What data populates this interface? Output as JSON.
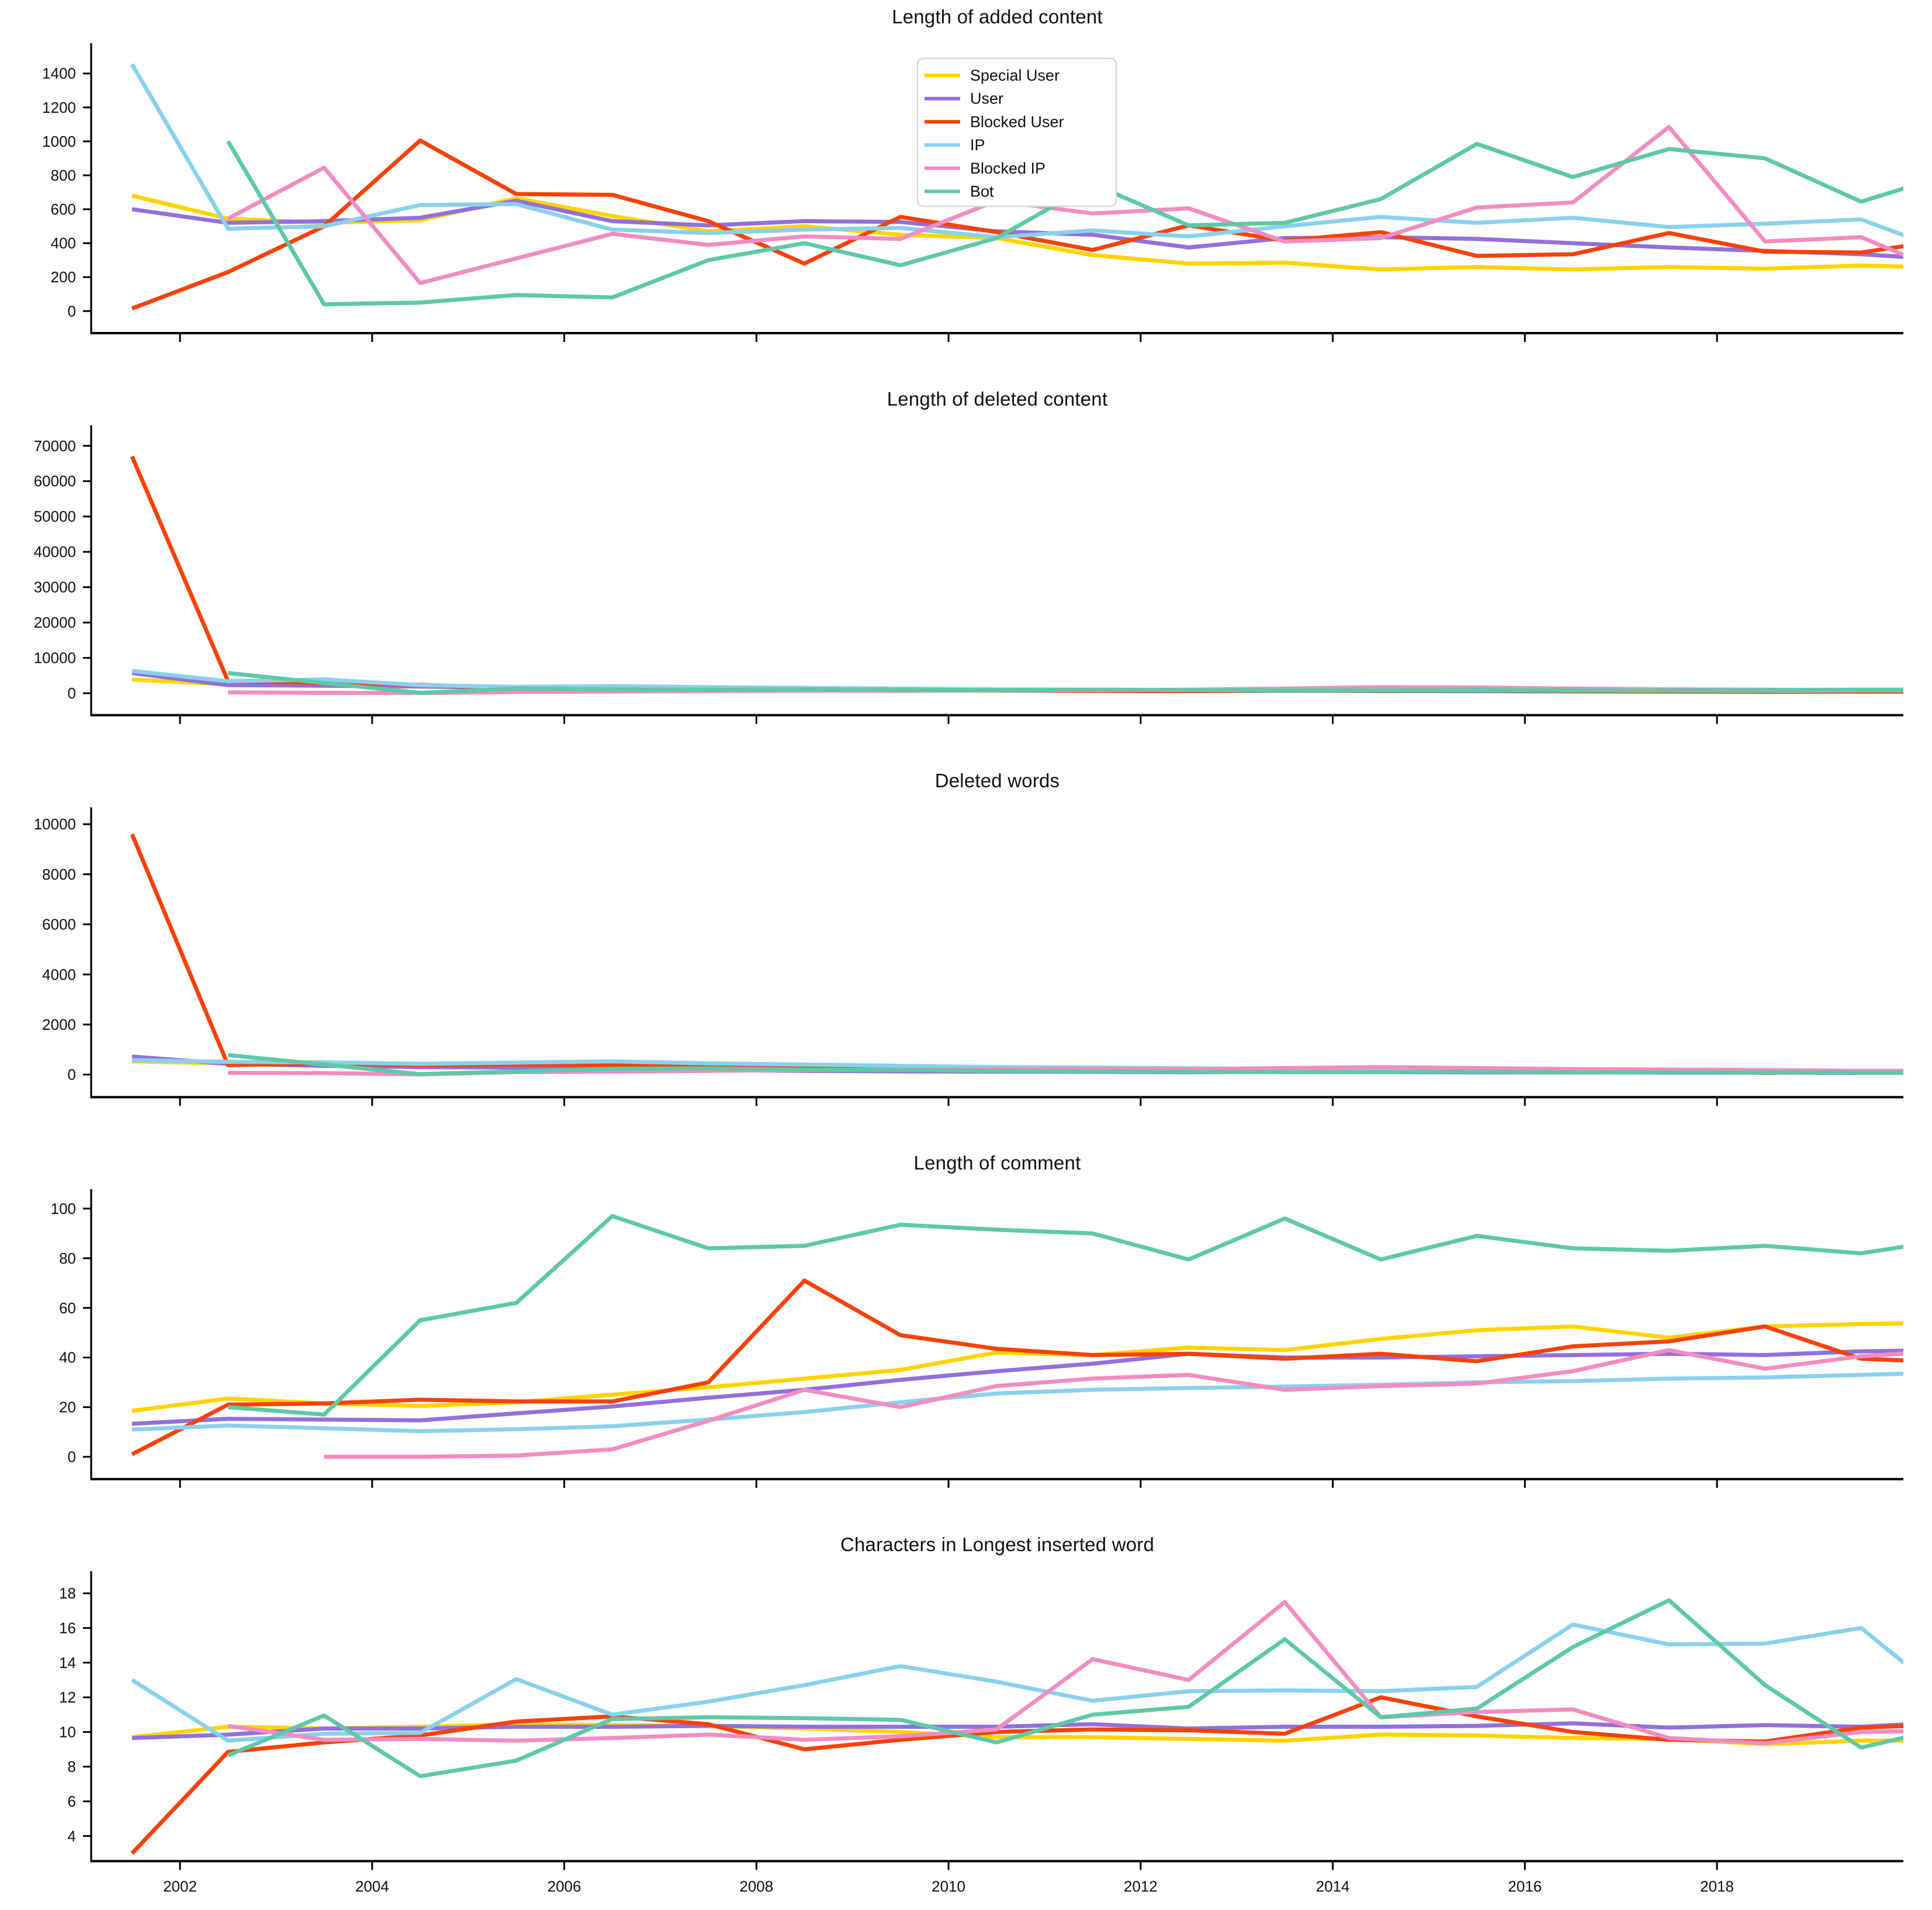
{
  "figure": {
    "background": "#ffffff",
    "text_color": "#111111",
    "axis_color": "#000000"
  },
  "colors": {
    "special_user": "#FFD400",
    "user": "#9370DB",
    "blocked_user": "#F64208",
    "ip": "#8AD1ED",
    "blocked_ip": "#F18DC1",
    "bot": "#5EC9A7"
  },
  "legend": {
    "position": "upper-center-chart-1",
    "entries": [
      {
        "label": "Special User",
        "color_key": "special_user"
      },
      {
        "label": "User",
        "color_key": "user"
      },
      {
        "label": "Blocked User",
        "color_key": "blocked_user"
      },
      {
        "label": "IP",
        "color_key": "ip"
      },
      {
        "label": "Blocked IP",
        "color_key": "blocked_ip"
      },
      {
        "label": "Bot",
        "color_key": "bot"
      }
    ]
  },
  "x": [
    2001.5,
    2002.5,
    2003.5,
    2004.5,
    2005.5,
    2006.5,
    2007.5,
    2008.5,
    2009.5,
    2010.5,
    2011.5,
    2012.5,
    2013.5,
    2014.5,
    2015.5,
    2016.5,
    2017.5,
    2018.5,
    2019.5,
    2020.5
  ],
  "xticks": [
    2002,
    2004,
    2006,
    2008,
    2010,
    2012,
    2014,
    2016,
    2018
  ],
  "xtick_labels": [
    "2002",
    "2004",
    "2006",
    "2008",
    "2010",
    "2012",
    "2014",
    "2016",
    "2018"
  ],
  "xlim": [
    2001.075,
    2019.94
  ],
  "chart_data": [
    {
      "type": "line",
      "id": "added-content",
      "title": "Length of added content",
      "ylabel": "",
      "yticks": [
        0,
        200,
        400,
        600,
        800,
        1000,
        1200,
        1400
      ],
      "ylim": [
        -130,
        1530
      ],
      "grid": false,
      "legend": true,
      "show_xtick_labels": false,
      "series": [
        {
          "name": "Special User",
          "color_key": "special_user",
          "values": [
            680,
            545,
            520,
            535,
            665,
            560,
            470,
            500,
            450,
            430,
            330,
            280,
            285,
            245,
            260,
            245,
            260,
            250,
            268,
            255
          ]
        },
        {
          "name": "User",
          "color_key": "user",
          "values": [
            600,
            520,
            530,
            550,
            650,
            530,
            505,
            530,
            525,
            470,
            450,
            375,
            430,
            435,
            425,
            400,
            375,
            355,
            335,
            300
          ]
        },
        {
          "name": "Blocked User",
          "color_key": "blocked_user",
          "values": [
            15,
            230,
            500,
            1005,
            690,
            685,
            530,
            280,
            555,
            465,
            360,
            505,
            415,
            465,
            325,
            335,
            460,
            350,
            345,
            430
          ]
        },
        {
          "name": "IP",
          "color_key": "ip",
          "values": [
            1455,
            485,
            500,
            625,
            630,
            480,
            460,
            480,
            490,
            435,
            475,
            440,
            500,
            555,
            520,
            550,
            495,
            515,
            540,
            330
          ]
        },
        {
          "name": "Blocked IP",
          "color_key": "blocked_ip",
          "values": [
            null,
            545,
            845,
            165,
            310,
            455,
            390,
            440,
            425,
            650,
            575,
            605,
            410,
            430,
            610,
            640,
            1085,
            410,
            435,
            200
          ]
        },
        {
          "name": "Bot",
          "color_key": "bot",
          "values": [
            null,
            1000,
            40,
            50,
            95,
            80,
            300,
            400,
            270,
            430,
            750,
            505,
            520,
            660,
            985,
            790,
            955,
            900,
            645,
            820
          ]
        }
      ]
    },
    {
      "type": "line",
      "id": "deleted-content",
      "title": "Length of deleted content",
      "ylabel": "",
      "yticks": [
        0,
        10000,
        20000,
        30000,
        40000,
        50000,
        60000,
        70000
      ],
      "ylim": [
        -6200,
        73500
      ],
      "grid": false,
      "legend": false,
      "show_xtick_labels": false,
      "series": [
        {
          "name": "Special User",
          "color_key": "special_user",
          "values": [
            3900,
            2500,
            2100,
            1900,
            1500,
            1300,
            1000,
            900,
            800,
            700,
            650,
            600,
            700,
            600,
            550,
            500,
            450,
            450,
            400,
            400
          ]
        },
        {
          "name": "User",
          "color_key": "user",
          "values": [
            5700,
            2300,
            2150,
            1900,
            1550,
            1300,
            1100,
            1000,
            900,
            800,
            700,
            650,
            700,
            650,
            600,
            550,
            500,
            500,
            450,
            450
          ]
        },
        {
          "name": "Blocked User",
          "color_key": "blocked_user",
          "values": [
            67000,
            3400,
            2900,
            2400,
            1450,
            1200,
            900,
            800,
            700,
            900,
            700,
            600,
            800,
            700,
            900,
            600,
            500,
            400,
            500,
            600
          ]
        },
        {
          "name": "IP",
          "color_key": "ip",
          "values": [
            6300,
            3400,
            3900,
            2300,
            1800,
            2000,
            1700,
            1500,
            1300,
            1100,
            1000,
            900,
            1000,
            900,
            900,
            800,
            750,
            700,
            800,
            800
          ]
        },
        {
          "name": "Blocked IP",
          "color_key": "blocked_ip",
          "values": [
            null,
            250,
            100,
            50,
            350,
            500,
            600,
            700,
            700,
            800,
            900,
            1000,
            1300,
            1700,
            1600,
            1300,
            1100,
            1000,
            900,
            900
          ]
        },
        {
          "name": "Bot",
          "color_key": "bot",
          "values": [
            null,
            5700,
            2900,
            100,
            1300,
            1100,
            1000,
            1100,
            1000,
            900,
            1000,
            900,
            800,
            800,
            900,
            800,
            800,
            900,
            1000,
            1000
          ]
        }
      ]
    },
    {
      "type": "line",
      "id": "deleted-words",
      "title": "Deleted words",
      "ylabel": "",
      "yticks": [
        0,
        2000,
        4000,
        6000,
        8000,
        10000
      ],
      "ylim": [
        -900,
        10350
      ],
      "grid": false,
      "legend": false,
      "show_xtick_labels": false,
      "series": [
        {
          "name": "Special User",
          "color_key": "special_user",
          "values": [
            530,
            450,
            380,
            300,
            330,
            250,
            200,
            160,
            130,
            120,
            110,
            100,
            120,
            110,
            100,
            90,
            90,
            80,
            80,
            80
          ]
        },
        {
          "name": "User",
          "color_key": "user",
          "values": [
            720,
            430,
            350,
            300,
            280,
            230,
            180,
            150,
            130,
            120,
            110,
            100,
            110,
            100,
            90,
            90,
            80,
            80,
            70,
            70
          ]
        },
        {
          "name": "Blocked User",
          "color_key": "blocked_user",
          "values": [
            9600,
            380,
            440,
            380,
            400,
            380,
            300,
            250,
            200,
            250,
            180,
            150,
            200,
            150,
            120,
            100,
            120,
            80,
            100,
            120
          ]
        },
        {
          "name": "IP",
          "color_key": "ip",
          "values": [
            580,
            510,
            490,
            430,
            480,
            530,
            450,
            400,
            350,
            300,
            280,
            250,
            230,
            220,
            250,
            200,
            180,
            150,
            150,
            150
          ]
        },
        {
          "name": "Blocked IP",
          "color_key": "blocked_ip",
          "values": [
            null,
            70,
            60,
            10,
            100,
            120,
            150,
            180,
            200,
            220,
            230,
            220,
            260,
            300,
            260,
            220,
            200,
            180,
            150,
            150
          ]
        },
        {
          "name": "Bot",
          "color_key": "bot",
          "values": [
            null,
            780,
            400,
            20,
            130,
            230,
            250,
            200,
            180,
            150,
            130,
            120,
            100,
            100,
            120,
            100,
            90,
            90,
            80,
            80
          ]
        }
      ]
    },
    {
      "type": "line",
      "id": "comment-length",
      "title": "Length of comment",
      "ylabel": "",
      "yticks": [
        0,
        20,
        40,
        60,
        80,
        100
      ],
      "ylim": [
        -9,
        104.5
      ],
      "grid": false,
      "legend": false,
      "show_xtick_labels": false,
      "series": [
        {
          "name": "Special User",
          "color_key": "special_user",
          "values": [
            18.5,
            23.5,
            21.5,
            20.5,
            22,
            25,
            28,
            31.5,
            35,
            42,
            41,
            44,
            43,
            47.5,
            51,
            52.5,
            48,
            52.5,
            53.5,
            54
          ]
        },
        {
          "name": "User",
          "color_key": "user",
          "values": [
            13.3,
            15.3,
            15,
            14.7,
            17.5,
            20.3,
            23.8,
            27,
            31,
            34.5,
            37.5,
            41.5,
            40,
            40,
            40.5,
            41,
            41.5,
            41,
            42.5,
            43
          ]
        },
        {
          "name": "Blocked User",
          "color_key": "blocked_user",
          "values": [
            1,
            21,
            21.5,
            23,
            22.3,
            22.3,
            30,
            71,
            49,
            43.5,
            41,
            41.5,
            39.5,
            41.5,
            38.5,
            44.5,
            46.5,
            52.5,
            39.5,
            38
          ]
        },
        {
          "name": "IP",
          "color_key": "ip",
          "values": [
            11,
            12.6,
            11.5,
            10.3,
            11.1,
            12.3,
            15,
            18,
            22,
            25.5,
            27,
            27.7,
            28.3,
            29,
            30,
            30.5,
            31.5,
            32,
            33,
            34
          ]
        },
        {
          "name": "Blocked IP",
          "color_key": "blocked_ip",
          "values": [
            null,
            null,
            0,
            0,
            0.5,
            3,
            14.5,
            27,
            20,
            28.5,
            31.5,
            33,
            27,
            28.5,
            29.5,
            34.5,
            43,
            35.5,
            40.5,
            43
          ]
        },
        {
          "name": "Bot",
          "color_key": "bot",
          "values": [
            null,
            20,
            17,
            55,
            62,
            97,
            84,
            85,
            93.5,
            91.5,
            90,
            79.5,
            96,
            79.5,
            89,
            84,
            83,
            85,
            82,
            88
          ]
        }
      ]
    },
    {
      "type": "line",
      "id": "longest-word",
      "title": "Characters in Longest inserted word",
      "ylabel": "",
      "yticks": [
        4,
        6,
        8,
        10,
        12,
        14,
        16,
        18
      ],
      "ylim": [
        2.55,
        18.8
      ],
      "grid": false,
      "legend": false,
      "show_xtick_labels": true,
      "series": [
        {
          "name": "Special User",
          "color_key": "special_user",
          "values": [
            9.7,
            10.3,
            10.2,
            10.3,
            10.45,
            10.4,
            10.35,
            10.2,
            10.0,
            9.7,
            9.7,
            9.6,
            9.5,
            9.85,
            9.8,
            9.65,
            9.6,
            9.3,
            9.5,
            9.5
          ]
        },
        {
          "name": "User",
          "color_key": "user",
          "values": [
            9.65,
            9.85,
            10.2,
            10.2,
            10.3,
            10.3,
            10.35,
            10.3,
            10.3,
            10.3,
            10.45,
            10.2,
            10.3,
            10.3,
            10.35,
            10.5,
            10.25,
            10.4,
            10.3,
            10.6
          ]
        },
        {
          "name": "Blocked User",
          "color_key": "blocked_user",
          "values": [
            3.0,
            8.85,
            9.4,
            9.8,
            10.6,
            10.9,
            10.45,
            9.0,
            9.55,
            10.0,
            10.15,
            10.1,
            9.9,
            12.0,
            10.9,
            10.0,
            9.55,
            9.45,
            10.25,
            10.45
          ]
        },
        {
          "name": "IP",
          "color_key": "ip",
          "values": [
            13.0,
            9.5,
            9.9,
            9.95,
            13.05,
            11.0,
            11.75,
            12.7,
            13.8,
            12.9,
            11.8,
            12.35,
            12.4,
            12.35,
            12.6,
            16.2,
            15.05,
            15.1,
            16.0,
            11.5
          ]
        },
        {
          "name": "Blocked IP",
          "color_key": "blocked_ip",
          "values": [
            null,
            10.35,
            9.55,
            9.6,
            9.5,
            9.65,
            9.85,
            9.55,
            9.75,
            10.15,
            14.2,
            13.0,
            17.5,
            10.85,
            11.15,
            11.3,
            9.65,
            9.35,
            10.0,
            10.1
          ]
        },
        {
          "name": "Bot",
          "color_key": "bot",
          "values": [
            null,
            8.65,
            10.95,
            7.45,
            8.35,
            10.75,
            10.85,
            10.8,
            10.7,
            9.4,
            11.0,
            11.45,
            15.35,
            10.85,
            11.35,
            14.9,
            17.6,
            12.7,
            9.1,
            10.4
          ]
        }
      ]
    }
  ]
}
